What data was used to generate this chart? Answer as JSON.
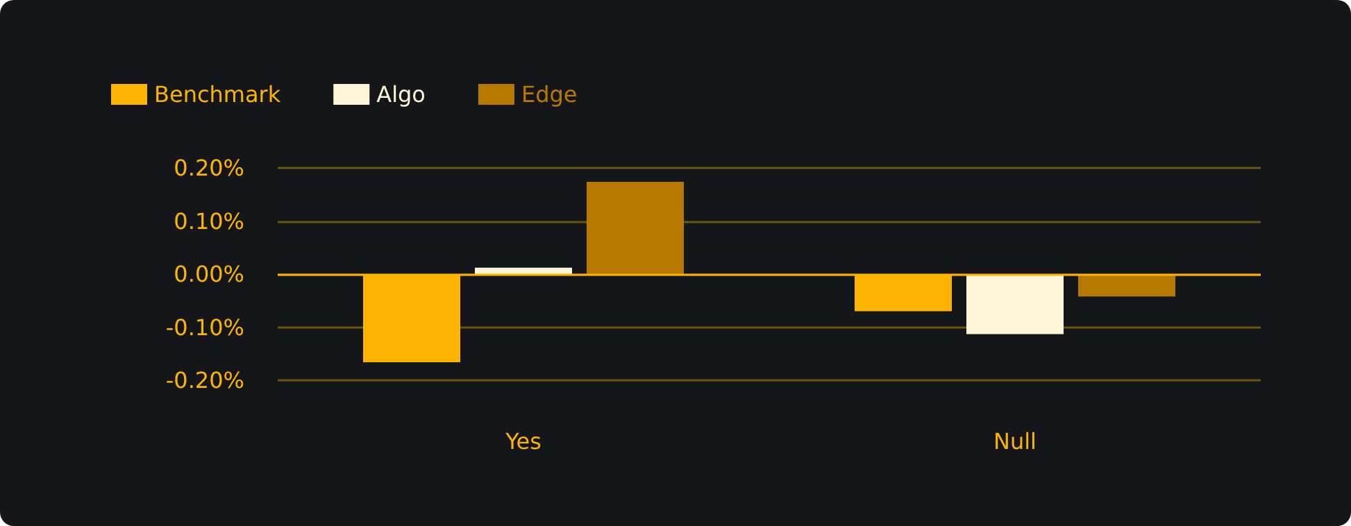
{
  "chart_data": {
    "type": "bar",
    "categories": [
      "Yes",
      "Null"
    ],
    "series": [
      {
        "name": "Benchmark",
        "color": "#fdb400",
        "values": [
          -0.166,
          -0.07
        ]
      },
      {
        "name": "Algo",
        "color": "#fff5d9",
        "values": [
          0.012,
          -0.113
        ]
      },
      {
        "name": "Edge",
        "color": "#b87900",
        "values": [
          0.174,
          -0.042
        ]
      }
    ],
    "ylim": [
      -0.2,
      0.2
    ],
    "yticks": [
      {
        "value": -0.2,
        "label": "-0.20%"
      },
      {
        "value": -0.1,
        "label": "-0.10%"
      },
      {
        "value": 0,
        "label": "0.00%"
      },
      {
        "value": 0.1,
        "label": "0.10%"
      },
      {
        "value": 0.2,
        "label": "0.20%"
      }
    ],
    "ref_lines": [
      {
        "axis": "y",
        "value": 0,
        "color": "#fdb400"
      }
    ],
    "grid": "y",
    "legend": "top left"
  }
}
